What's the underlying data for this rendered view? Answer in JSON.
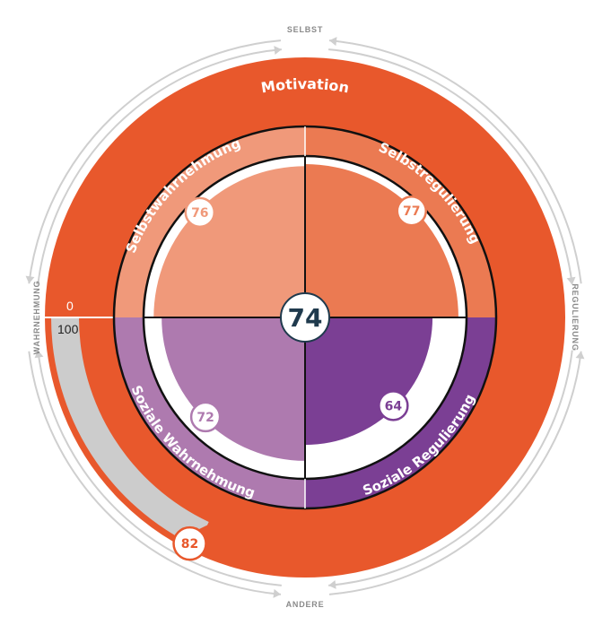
{
  "axes": {
    "top": "SELBST",
    "bottom": "ANDERE",
    "left": "WAHRNEHMUNG",
    "right": "REGULIERUNG"
  },
  "motivation": {
    "label": "Motivation",
    "value": 82,
    "scale_min": "0",
    "scale_max": "100"
  },
  "overall": {
    "value": "74"
  },
  "colors": {
    "motivation": "#e8582c",
    "motivation_track": "#cccccc",
    "selbstwahrnehmung": "#f0997a",
    "selbstregulierung": "#eb7a52",
    "soziale_wahrnehmung": "#ae7aaf",
    "soziale_regulierung": "#7b3f94",
    "arrows": "#cfcfcf",
    "center": "#1f3a4d"
  },
  "chart_data": {
    "type": "polar-area",
    "max": 100,
    "quadrants": [
      {
        "name": "Selbstwahrnehmung",
        "value": 76
      },
      {
        "name": "Selbstregulierung",
        "value": 77
      },
      {
        "name": "Soziale Regulierung",
        "value": 64
      },
      {
        "name": "Soziale Wahrnehmung",
        "value": 72
      }
    ]
  }
}
